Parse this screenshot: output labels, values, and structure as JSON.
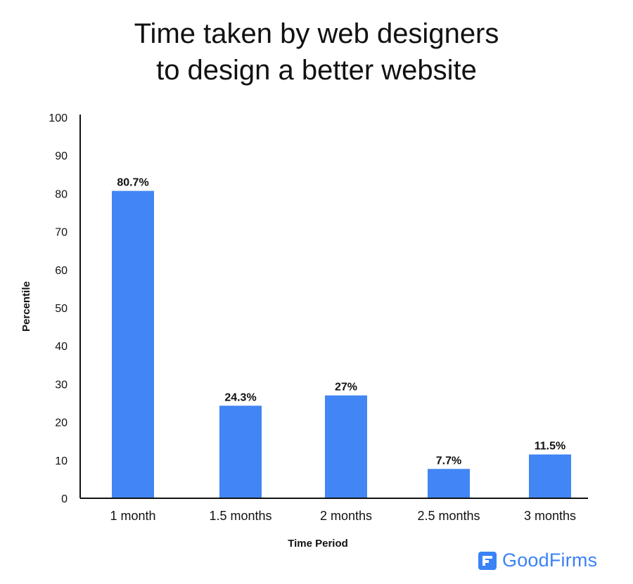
{
  "title_lines": [
    "Time taken by web designers",
    "to design a better website"
  ],
  "brand": {
    "name": "GoodFirms",
    "color": "#3b82f6"
  },
  "colors": {
    "bar": "#4285f4",
    "axis": "#111111"
  },
  "chart_data": {
    "type": "bar",
    "title": "Time taken by web designers to design a better website",
    "xlabel": "Time Period",
    "ylabel": "Percentile",
    "categories": [
      "1 month",
      "1.5 months",
      "2 months",
      "2.5 months",
      "3 months"
    ],
    "values": [
      80.7,
      24.3,
      27,
      7.7,
      11.5
    ],
    "data_labels": [
      "80.7%",
      "24.3%",
      "27%",
      "7.7%",
      "11.5%"
    ],
    "ylim": [
      0,
      100
    ],
    "yticks": [
      0,
      10,
      20,
      30,
      40,
      50,
      60,
      70,
      80,
      90,
      100
    ],
    "grid": false,
    "legend": "none"
  }
}
